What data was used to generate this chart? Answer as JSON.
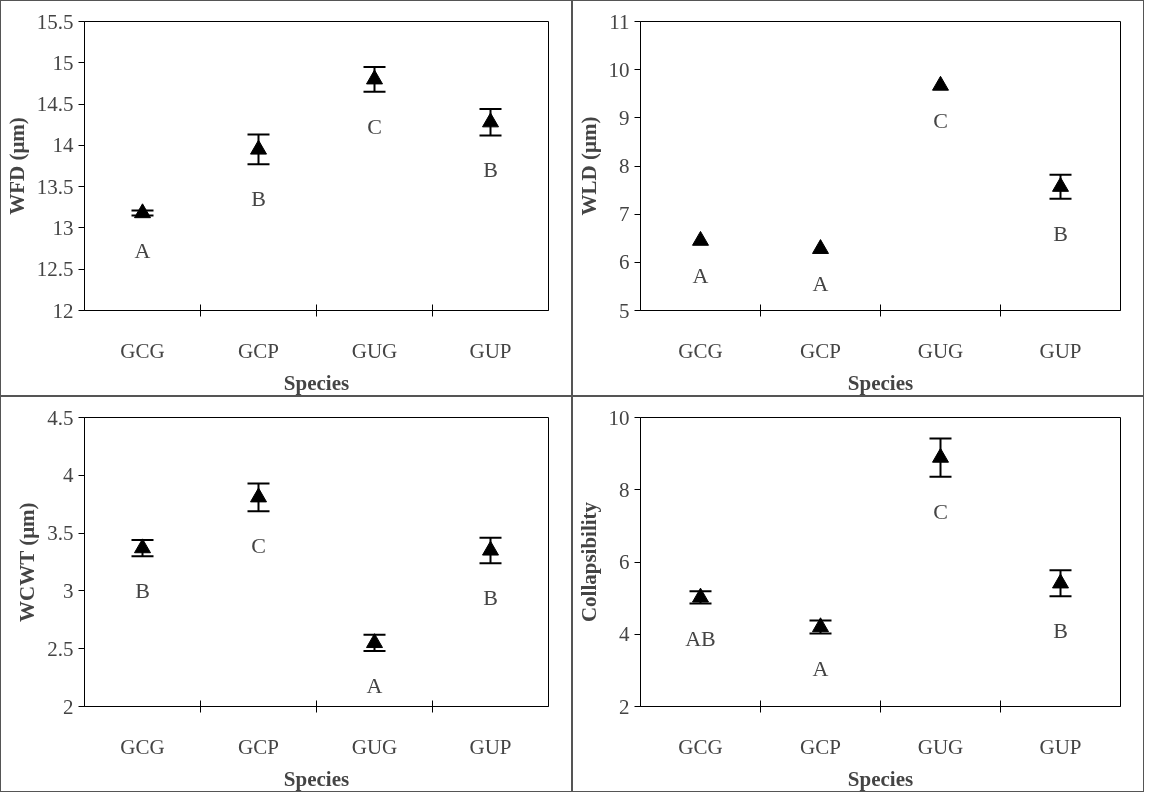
{
  "chart_data": [
    {
      "type": "scatter",
      "categories": [
        "GCG",
        "GCP",
        "GUG",
        "GUP"
      ],
      "values": [
        13.18,
        13.95,
        14.8,
        14.28
      ],
      "errors": [
        0.03,
        0.18,
        0.15,
        0.16
      ],
      "color": "#000000",
      "marker": "triangle",
      "xlabel": "Species",
      "ylabel": "WFD (μm)",
      "ylim": [
        12,
        15.5
      ],
      "yticks": [
        12,
        12.5,
        13,
        13.5,
        14,
        14.5,
        15,
        15.5
      ],
      "annotations": [
        "A",
        "B",
        "C",
        "B"
      ]
    },
    {
      "type": "scatter",
      "categories": [
        "GCG",
        "GCP",
        "GUG",
        "GUP"
      ],
      "values": [
        6.45,
        6.28,
        9.67,
        7.57
      ],
      "errors": [
        null,
        null,
        null,
        0.25
      ],
      "color": "#000000",
      "marker": "triangle",
      "xlabel": "Species",
      "ylabel": "WLD (μm)",
      "ylim": [
        5,
        11
      ],
      "yticks": [
        5,
        6,
        7,
        8,
        9,
        10,
        11
      ],
      "annotations": [
        "A",
        "A",
        "C",
        "B"
      ]
    },
    {
      "type": "scatter",
      "categories": [
        "GCG",
        "GCP",
        "GUG",
        "GUP"
      ],
      "values": [
        3.37,
        3.81,
        2.55,
        3.35
      ],
      "errors": [
        0.07,
        0.12,
        0.07,
        0.11
      ],
      "color": "#000000",
      "marker": "triangle",
      "xlabel": "Species",
      "ylabel": "WCWT (μm)",
      "ylim": [
        2,
        4.5
      ],
      "yticks": [
        2,
        2.5,
        3,
        3.5,
        4,
        4.5
      ],
      "annotations": [
        "B",
        "C",
        "A",
        "B"
      ]
    },
    {
      "type": "scatter",
      "categories": [
        "GCG",
        "GCP",
        "GUG",
        "GUP"
      ],
      "values": [
        5.02,
        4.2,
        8.89,
        5.41
      ],
      "errors": [
        0.17,
        0.18,
        0.53,
        0.36
      ],
      "color": "#000000",
      "marker": "triangle",
      "xlabel": "Species",
      "ylabel": "Collapsibility",
      "ylim": [
        2,
        10
      ],
      "yticks": [
        2,
        4,
        6,
        8,
        10
      ],
      "annotations": [
        "AB",
        "A",
        "C",
        "B"
      ]
    }
  ]
}
